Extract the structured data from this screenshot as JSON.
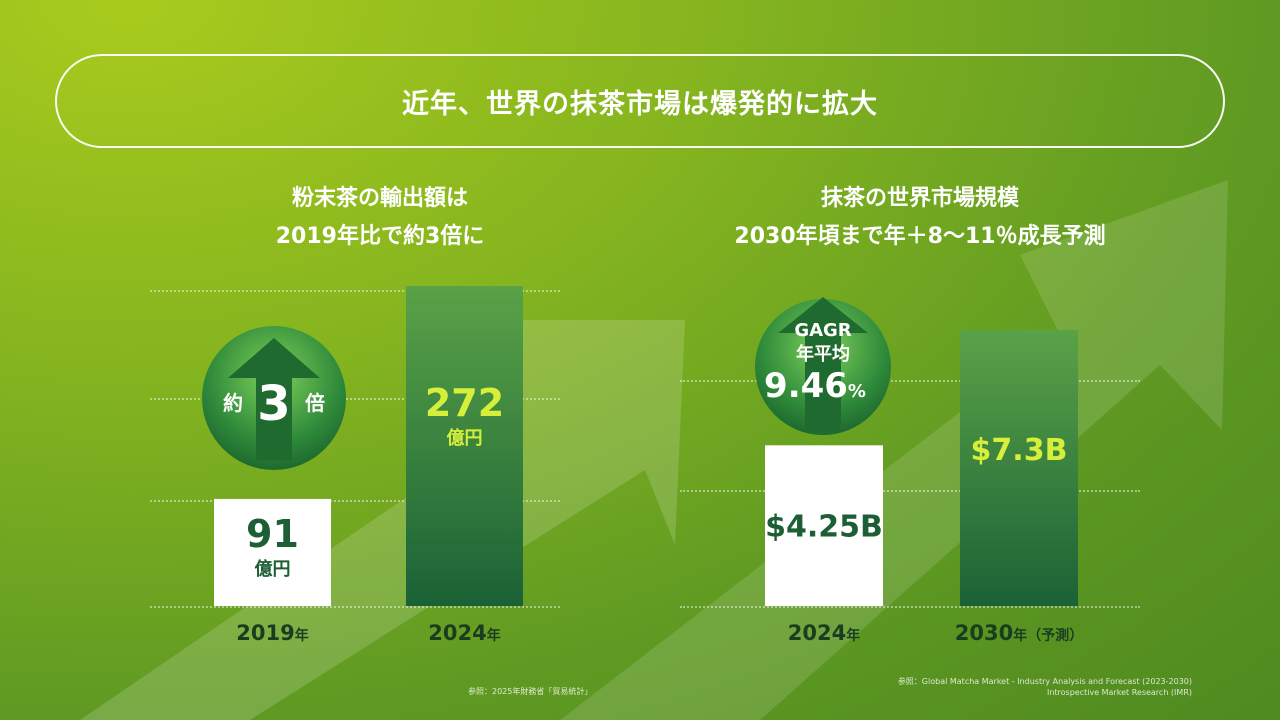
{
  "title": "近年、世界の抹茶市場は爆発的に拡大",
  "left": {
    "subtitle_line1": "粉末茶の輸出額は",
    "subtitle_line2": "2019年比で約3倍に",
    "badge": {
      "prefix": "約",
      "number": "3",
      "suffix": "倍"
    },
    "source": "参照：2025年財務省「貿易統計」"
  },
  "right": {
    "subtitle_line1": "抹茶の世界市場規模",
    "subtitle_line2": "2030年頃まで年＋8〜11％成長予測",
    "badge": {
      "line1": "GAGR",
      "line2": "年平均",
      "value": "9.46",
      "unit": "%"
    },
    "source_line1": "参照：Global Matcha Market - Industry Analysis and Forecast (2023-2030)",
    "source_line2": "Introspective Market Research (IMR)"
  },
  "colors": {
    "accent": "#c8e62e",
    "bar_dark": "#1d6b3a",
    "bar_light": "#4c9a44",
    "badge_green": "#2e8a3c"
  },
  "chart_data": [
    {
      "type": "bar",
      "categories": [
        "2019",
        "2024"
      ],
      "category_suffix": "年",
      "values": [
        91,
        272
      ],
      "value_labels": [
        "91",
        "272"
      ],
      "unit": "億円",
      "bar_styles": [
        "white",
        "green"
      ]
    },
    {
      "type": "bar",
      "categories": [
        "2024",
        "2030"
      ],
      "category_suffix": "年",
      "category_notes": [
        "",
        "（予測）"
      ],
      "values": [
        4.25,
        7.3
      ],
      "value_labels": [
        "$4.25B",
        "$7.3B"
      ],
      "bar_styles": [
        "white",
        "green"
      ]
    }
  ]
}
